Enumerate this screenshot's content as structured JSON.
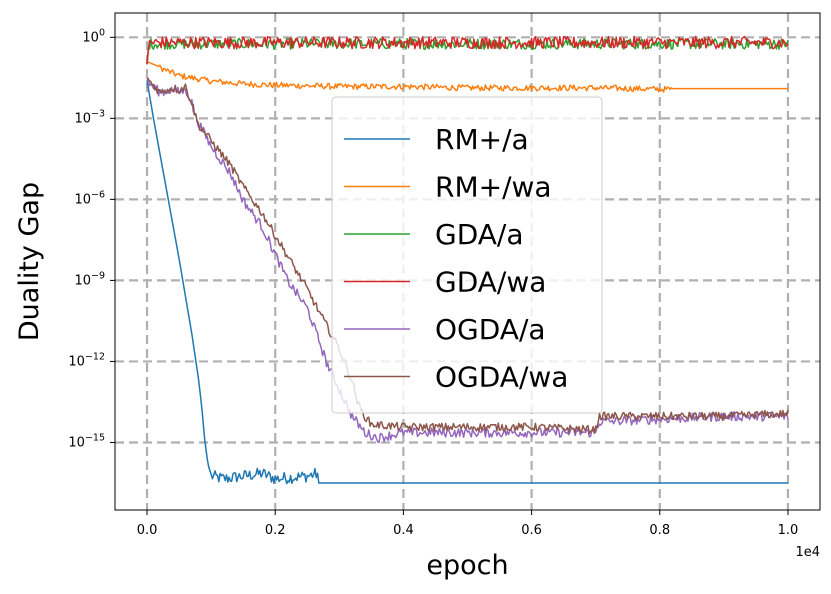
{
  "chart_data": {
    "type": "line",
    "title": "",
    "xlabel": "epoch",
    "ylabel": "Duality Gap",
    "x_multiplier_label": "1e4",
    "xlim": [
      -0.05,
      1.05
    ],
    "ylim_log10": [
      -17.5,
      0.9
    ],
    "x_ticks": [
      {
        "value": 0.0,
        "label": "0.0"
      },
      {
        "value": 0.2,
        "label": "0.2"
      },
      {
        "value": 0.4,
        "label": "0.4"
      },
      {
        "value": 0.6,
        "label": "0.6"
      },
      {
        "value": 0.8,
        "label": "0.8"
      },
      {
        "value": 1.0,
        "label": "1.0"
      }
    ],
    "y_ticks": [
      {
        "exp": 0,
        "base": "10",
        "sup": "0"
      },
      {
        "exp": -3,
        "base": "10",
        "sup": "−3"
      },
      {
        "exp": -6,
        "base": "10",
        "sup": "−6"
      },
      {
        "exp": -9,
        "base": "10",
        "sup": "−9"
      },
      {
        "exp": -12,
        "base": "10",
        "sup": "−12"
      },
      {
        "exp": -15,
        "base": "10",
        "sup": "−15"
      }
    ],
    "grid": true,
    "legend_position": "center",
    "series": [
      {
        "name": "RM+/a",
        "color": "#1f77b4",
        "points": [
          [
            0.0,
            -1.6
          ],
          [
            0.01,
            -3.0
          ],
          [
            0.02,
            -4.3
          ],
          [
            0.03,
            -5.6
          ],
          [
            0.04,
            -6.9
          ],
          [
            0.05,
            -8.2
          ],
          [
            0.06,
            -9.6
          ],
          [
            0.07,
            -11.0
          ],
          [
            0.08,
            -12.6
          ],
          [
            0.085,
            -13.6
          ],
          [
            0.09,
            -14.9
          ],
          [
            0.095,
            -15.8
          ],
          [
            0.1,
            -16.2
          ],
          [
            0.12,
            -16.3
          ],
          [
            0.15,
            -16.2
          ],
          [
            0.18,
            -16.1
          ],
          [
            0.2,
            -16.3
          ],
          [
            0.25,
            -16.2
          ],
          [
            0.267,
            -16.1
          ],
          [
            0.268,
            -16.5
          ],
          [
            0.5,
            -16.5
          ],
          [
            0.75,
            -16.5
          ],
          [
            1.0,
            -16.5
          ]
        ],
        "noisy_range": [
          0.1,
          0.267
        ],
        "noise_amp": 0.45
      },
      {
        "name": "RM+/wa",
        "color": "#ff7f0e",
        "points": [
          [
            0.0,
            -0.9
          ],
          [
            0.02,
            -1.1
          ],
          [
            0.05,
            -1.4
          ],
          [
            0.1,
            -1.6
          ],
          [
            0.15,
            -1.7
          ],
          [
            0.2,
            -1.75
          ],
          [
            0.3,
            -1.8
          ],
          [
            0.4,
            -1.8
          ],
          [
            0.5,
            -1.85
          ],
          [
            0.6,
            -1.85
          ],
          [
            0.7,
            -1.85
          ],
          [
            0.8,
            -1.9
          ],
          [
            0.9,
            -1.9
          ],
          [
            1.0,
            -1.9
          ]
        ],
        "noisy_range": [
          0.02,
          0.82
        ],
        "noise_amp": 0.22
      },
      {
        "name": "GDA/a",
        "color": "#2ca02c",
        "points": [
          [
            0.0,
            -1.0
          ],
          [
            0.003,
            -0.2
          ],
          [
            0.5,
            -0.2
          ],
          [
            1.0,
            -0.2
          ]
        ],
        "noisy_range": [
          0.003,
          1.0
        ],
        "noise_amp": 0.4
      },
      {
        "name": "GDA/wa",
        "color": "#d62728",
        "points": [
          [
            0.0,
            -1.0
          ],
          [
            0.003,
            -0.15
          ],
          [
            0.5,
            -0.15
          ],
          [
            1.0,
            -0.15
          ]
        ],
        "noisy_range": [
          0.003,
          1.0
        ],
        "noise_amp": 0.45
      },
      {
        "name": "OGDA/a",
        "color": "#9467bd",
        "points": [
          [
            0.0,
            -1.6
          ],
          [
            0.02,
            -2.0
          ],
          [
            0.04,
            -1.9
          ],
          [
            0.05,
            -2.0
          ],
          [
            0.06,
            -1.9
          ],
          [
            0.065,
            -2.1
          ],
          [
            0.07,
            -2.4
          ],
          [
            0.075,
            -2.9
          ],
          [
            0.1,
            -4.0
          ],
          [
            0.13,
            -5.0
          ],
          [
            0.15,
            -6.0
          ],
          [
            0.18,
            -7.0
          ],
          [
            0.2,
            -8.0
          ],
          [
            0.22,
            -9.0
          ],
          [
            0.25,
            -10.0
          ],
          [
            0.27,
            -11.3
          ],
          [
            0.28,
            -12.0
          ],
          [
            0.3,
            -13.0
          ],
          [
            0.32,
            -14.0
          ],
          [
            0.34,
            -14.6
          ],
          [
            0.36,
            -14.8
          ],
          [
            0.4,
            -14.6
          ],
          [
            0.5,
            -14.6
          ],
          [
            0.6,
            -14.6
          ],
          [
            0.7,
            -14.6
          ],
          [
            0.705,
            -14.2
          ],
          [
            0.8,
            -14.1
          ],
          [
            0.9,
            -14.0
          ],
          [
            1.0,
            -14.0
          ]
        ],
        "noisy_range": [
          0.0,
          1.0
        ],
        "noise_amp": 0.35
      },
      {
        "name": "OGDA/wa",
        "color": "#8c564b",
        "points": [
          [
            0.0,
            -1.5
          ],
          [
            0.02,
            -2.0
          ],
          [
            0.04,
            -1.85
          ],
          [
            0.05,
            -1.9
          ],
          [
            0.06,
            -1.8
          ],
          [
            0.07,
            -2.4
          ],
          [
            0.08,
            -3.2
          ],
          [
            0.1,
            -3.8
          ],
          [
            0.13,
            -4.7
          ],
          [
            0.15,
            -5.5
          ],
          [
            0.18,
            -6.5
          ],
          [
            0.2,
            -7.3
          ],
          [
            0.22,
            -8.1
          ],
          [
            0.25,
            -9.3
          ],
          [
            0.27,
            -10.2
          ],
          [
            0.3,
            -11.5
          ],
          [
            0.32,
            -12.7
          ],
          [
            0.33,
            -13.6
          ],
          [
            0.34,
            -14.0
          ],
          [
            0.35,
            -14.3
          ],
          [
            0.4,
            -14.4
          ],
          [
            0.5,
            -14.4
          ],
          [
            0.6,
            -14.4
          ],
          [
            0.7,
            -14.5
          ],
          [
            0.705,
            -14.0
          ],
          [
            0.8,
            -14.0
          ],
          [
            0.9,
            -14.0
          ],
          [
            1.0,
            -13.9
          ]
        ],
        "noisy_range": [
          0.0,
          1.0
        ],
        "noise_amp": 0.3
      }
    ]
  }
}
